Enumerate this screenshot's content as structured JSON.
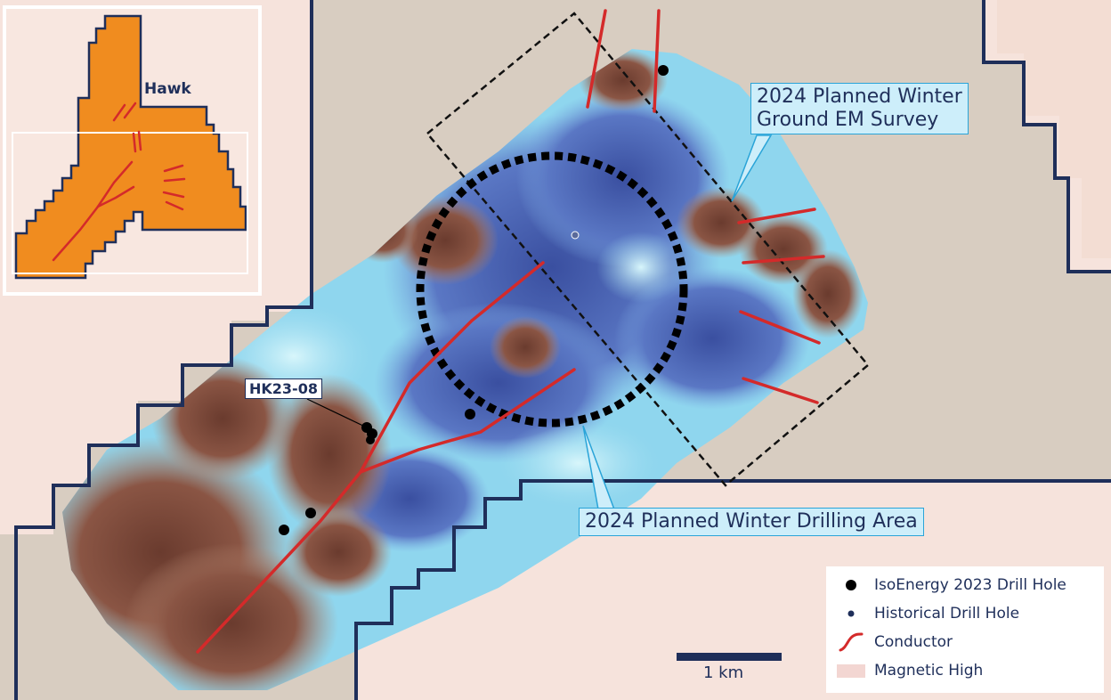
{
  "map": {
    "inset_label": "Hawk",
    "drill_label": "HK23-08",
    "callout_survey": [
      "2024 Planned Winter",
      "Ground EM Survey"
    ],
    "callout_drilling": "2024 Planned Winter Drilling Area",
    "scale_label": "1 km"
  },
  "legend": {
    "items": [
      {
        "label": "IsoEnergy 2023 Drill Hole",
        "icon": "large-black-dot-icon"
      },
      {
        "label": "Historical Drill Hole",
        "icon": "small-navy-dot-icon"
      },
      {
        "label": "Conductor",
        "icon": "red-line-icon"
      },
      {
        "label": "Magnetic High",
        "icon": "pink-swatch-icon"
      }
    ]
  },
  "colors": {
    "claim_boundary": "#1f2f5a",
    "conductor": "#d42a2a",
    "magnetic_high": "#f6e3dc",
    "background": "#d9cfc4",
    "inset_fill": "#f39322",
    "callout_fill": "#cdeefa",
    "callout_border": "#2aa4d8"
  }
}
